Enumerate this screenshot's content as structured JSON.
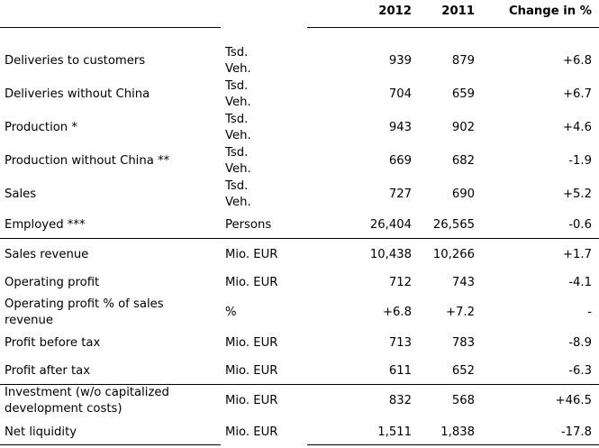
{
  "header": {
    "col_2012": "2012",
    "col_2011": "2011",
    "col_change": "Change in %"
  },
  "rows": [
    {
      "label": [
        "Deliveries to customers"
      ],
      "unit": [
        "Tsd.",
        "Veh."
      ],
      "v2012": "939",
      "v2011": "879",
      "change": "+6.8"
    },
    {
      "label": [
        "Deliveries without China"
      ],
      "unit": [
        "Tsd.",
        "Veh."
      ],
      "v2012": "704",
      "v2011": "659",
      "change": "+6.7"
    },
    {
      "label": [
        "Production *"
      ],
      "unit": [
        "Tsd.",
        "Veh."
      ],
      "v2012": "943",
      "v2011": "902",
      "change": "+4.6"
    },
    {
      "label": [
        "Production without China **"
      ],
      "unit": [
        "Tsd.",
        "Veh."
      ],
      "v2012": "669",
      "v2011": "682",
      "change": "-1.9"
    },
    {
      "label": [
        "Sales"
      ],
      "unit": [
        "Tsd.",
        "Veh."
      ],
      "v2012": "727",
      "v2011": "690",
      "change": "+5.2"
    },
    {
      "label": [
        "Employed ***"
      ],
      "unit": [
        "Persons"
      ],
      "v2012": "26,404",
      "v2011": "26,565",
      "change": "-0.6"
    },
    {
      "label": [
        "Sales revenue"
      ],
      "unit": [
        "Mio. EUR"
      ],
      "v2012": "10,438",
      "v2011": "10,266",
      "change": "+1.7"
    },
    {
      "label": [
        "Operating profit"
      ],
      "unit": [
        "Mio. EUR"
      ],
      "v2012": "712",
      "v2011": "743",
      "change": "-4.1"
    },
    {
      "label": [
        "Operating profit % of sales",
        "revenue"
      ],
      "unit": [
        "%"
      ],
      "v2012": "+6.8",
      "v2011": "+7.2",
      "change": "-"
    },
    {
      "label": [
        "Profit before tax"
      ],
      "unit": [
        "Mio. EUR"
      ],
      "v2012": "713",
      "v2011": "783",
      "change": "-8.9"
    },
    {
      "label": [
        "Profit after tax"
      ],
      "unit": [
        "Mio. EUR"
      ],
      "v2012": "611",
      "v2011": "652",
      "change": "-6.3"
    },
    {
      "label": [
        "Investment (w/o capitalized",
        "development costs)"
      ],
      "unit": [
        "Mio. EUR"
      ],
      "v2012": "832",
      "v2011": "568",
      "change": "+46.5"
    },
    {
      "label": [
        "Net liquidity"
      ],
      "unit": [
        "Mio. EUR"
      ],
      "v2012": "1,511",
      "v2011": "1,838",
      "change": "-17.8"
    }
  ]
}
